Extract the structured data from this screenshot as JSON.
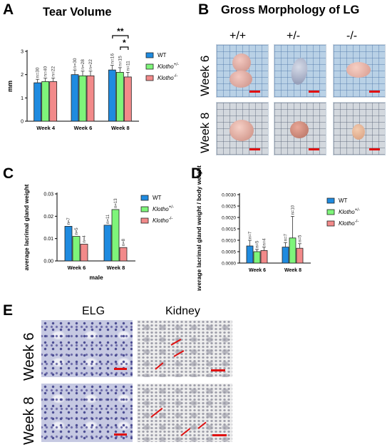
{
  "figure": {
    "panels": {
      "A": "A",
      "B": "B",
      "C": "C",
      "D": "D",
      "E": "E"
    },
    "legend": {
      "wt": "WT",
      "het_base": "Klotho",
      "het_sup": "+/-",
      "ko_base": "Klotho",
      "ko_sup": "-/-",
      "colors": {
        "wt": "#1f8be0",
        "het": "#7ef57a",
        "ko": "#f28a8a"
      }
    },
    "panel_b": {
      "title": "Gross Morphology of  LG",
      "genotypes": [
        "+/+",
        "+/-",
        "-/-"
      ],
      "rows": [
        "Week 6",
        "Week 8"
      ]
    },
    "panel_e": {
      "columns": [
        "ELG",
        "Kidney"
      ],
      "rows": [
        "Week 6",
        "Week 8"
      ]
    }
  },
  "chart_data": [
    {
      "id": "A",
      "type": "bar",
      "title": "Tear Volume",
      "xlabel": "",
      "ylabel": "mm",
      "ylim": [
        0,
        3
      ],
      "yticks": [
        "0",
        "1",
        "2",
        "3"
      ],
      "categories": [
        "Week 4",
        "Week 6",
        "Week 8"
      ],
      "series": [
        {
          "name": "WT",
          "values": [
            1.65,
            2.0,
            2.2
          ],
          "err": [
            0.15,
            0.2,
            0.2
          ],
          "n": [
            "n=30",
            "n=30",
            "n=16"
          ]
        },
        {
          "name": "Klotho+/-",
          "values": [
            1.7,
            1.95,
            2.1
          ],
          "err": [
            0.15,
            0.2,
            0.2
          ],
          "n": [
            "n=40",
            "n=28",
            "n=15"
          ]
        },
        {
          "name": "Klotho-/-",
          "values": [
            1.7,
            1.95,
            1.9
          ],
          "err": [
            0.15,
            0.2,
            0.2
          ],
          "n": [
            "n=22",
            "n=22",
            "n=11"
          ]
        }
      ],
      "significance": [
        {
          "label": "**",
          "from": 0,
          "to": 2,
          "category": 2
        },
        {
          "label": "*",
          "from": 1,
          "to": 2,
          "category": 2
        }
      ]
    },
    {
      "id": "C",
      "type": "bar",
      "title": "",
      "xlabel": "male",
      "ylabel": "average lacrimal gland weight",
      "ylim": [
        0,
        0.03
      ],
      "yticks": [
        "0.00",
        "0.01",
        "0.02",
        "0.03"
      ],
      "categories": [
        "Week 6",
        "Week 8"
      ],
      "series": [
        {
          "name": "WT",
          "values": [
            0.0155,
            0.016
          ],
          "n": [
            "n=7",
            "n=11"
          ]
        },
        {
          "name": "Klotho+/-",
          "values": [
            0.011,
            0.023
          ],
          "n": [
            "n=5",
            "n=13"
          ]
        },
        {
          "name": "Klotho-/-",
          "values": [
            0.0075,
            0.006
          ],
          "n": [
            "n=4",
            "n=8"
          ]
        }
      ]
    },
    {
      "id": "D",
      "type": "bar",
      "title": "",
      "xlabel": "",
      "ylabel": "average lacrimal gland weight / body weight",
      "ylim": [
        0,
        0.003
      ],
      "yticks": [
        "0.0000",
        "0.0005",
        "0.0010",
        "0.0015",
        "0.0020",
        "0.0025",
        "0.0030"
      ],
      "categories": [
        "Week 6",
        "Week 8"
      ],
      "series": [
        {
          "name": "WT",
          "values": [
            0.00075,
            0.0007
          ],
          "err": [
            0.00025,
            0.0002
          ],
          "n": [
            "n=7",
            "n=7"
          ]
        },
        {
          "name": "Klotho+/-",
          "values": [
            0.0005,
            0.0011
          ],
          "err": [
            0.0001,
            0.00095
          ],
          "n": [
            "n=5",
            "n=10"
          ]
        },
        {
          "name": "Klotho-/-",
          "values": [
            0.00055,
            0.00065
          ],
          "err": [
            0.00015,
            0.0002
          ],
          "n": [
            "n=4",
            "n=5"
          ]
        }
      ]
    }
  ]
}
